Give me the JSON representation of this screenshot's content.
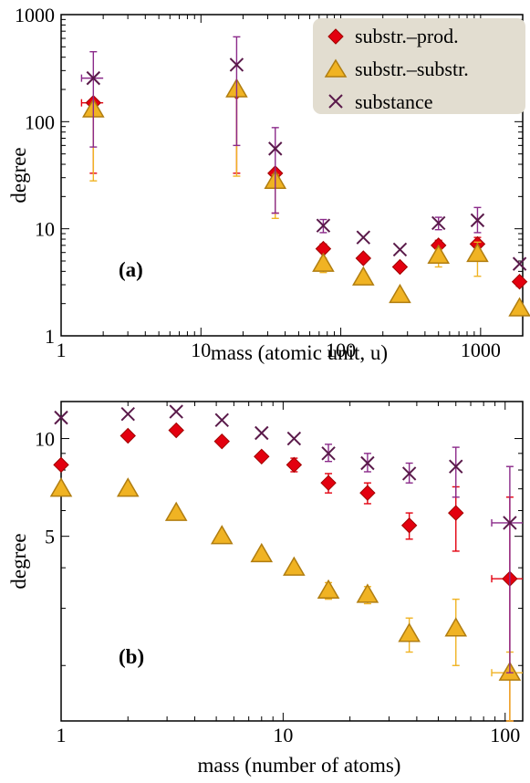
{
  "colors": {
    "substr_prod": "#e3000f",
    "substr_prod_edge": "#a00000",
    "substr_substr": "#f0b323",
    "substr_substr_edge": "#b07d10",
    "substance": "#5a1a4a",
    "substance_err": "#8b2a8a",
    "legend_bg": "#e2ddd0"
  },
  "legend": {
    "placement": "top-right",
    "entries": [
      {
        "label": "substr.–prod.",
        "marker": "diamond",
        "series": "substr_prod"
      },
      {
        "label": "substr.–substr.",
        "marker": "triangle",
        "series": "substr_substr"
      },
      {
        "label": "substance",
        "marker": "x",
        "series": "substance"
      }
    ]
  },
  "chart_data": [
    {
      "type": "scatter",
      "panel_label": "(a)",
      "xlabel": "mass (atomic unit, u)",
      "ylabel": "degree",
      "xscale": "log",
      "yscale": "log",
      "xlim": [
        1,
        2000
      ],
      "ylim": [
        1,
        1000
      ],
      "xticks": [
        {
          "v": 1,
          "label": "1"
        },
        {
          "v": 10,
          "label": "10"
        },
        {
          "v": 100,
          "label": "100"
        },
        {
          "v": 1000,
          "label": "1000"
        }
      ],
      "yticks": [
        {
          "v": 1,
          "label": "1"
        },
        {
          "v": 10,
          "label": "10"
        },
        {
          "v": 100,
          "label": "100"
        },
        {
          "v": 1000,
          "label": "1000"
        }
      ],
      "series": [
        {
          "name": "substr.–prod.",
          "key": "substr_prod",
          "points": [
            {
              "x": 1.7,
              "y": 150,
              "ylo": 33,
              "yhi": 155,
              "xlo": 1.4,
              "xhi": 2.0
            },
            {
              "x": 18,
              "y": 190,
              "ylo": 33,
              "yhi": 195
            },
            {
              "x": 34,
              "y": 33,
              "ylo": 14,
              "yhi": 35
            },
            {
              "x": 75,
              "y": 6.5,
              "ylo": 6.0,
              "yhi": 7.2
            },
            {
              "x": 145,
              "y": 5.3
            },
            {
              "x": 265,
              "y": 4.4
            },
            {
              "x": 500,
              "y": 7.0,
              "ylo": 6.4,
              "yhi": 7.8
            },
            {
              "x": 950,
              "y": 7.2,
              "ylo": 6.3,
              "yhi": 8.3
            },
            {
              "x": 1900,
              "y": 3.2,
              "ylo": 2.9,
              "yhi": 3.4
            }
          ]
        },
        {
          "name": "substr.–substr.",
          "key": "substr_substr",
          "points": [
            {
              "x": 1.7,
              "y": 130,
              "ylo": 28,
              "yhi": 140
            },
            {
              "x": 18,
              "y": 200,
              "ylo": 31,
              "yhi": 210
            },
            {
              "x": 34,
              "y": 28,
              "ylo": 12.5,
              "yhi": 32
            },
            {
              "x": 75,
              "y": 4.7,
              "ylo": 3.9,
              "yhi": 5.3
            },
            {
              "x": 145,
              "y": 3.5
            },
            {
              "x": 265,
              "y": 2.4
            },
            {
              "x": 500,
              "y": 5.6,
              "ylo": 4.4,
              "yhi": 6.4
            },
            {
              "x": 950,
              "y": 5.8,
              "ylo": 3.6,
              "yhi": 7.5
            },
            {
              "x": 1900,
              "y": 1.8
            }
          ]
        },
        {
          "name": "substance",
          "key": "substance",
          "points": [
            {
              "x": 1.7,
              "y": 255,
              "ylo": 58,
              "yhi": 450,
              "xlo": 1.4,
              "xhi": 2.0
            },
            {
              "x": 18,
              "y": 340,
              "ylo": 60,
              "yhi": 620
            },
            {
              "x": 34,
              "y": 56,
              "ylo": 14,
              "yhi": 88
            },
            {
              "x": 75,
              "y": 10.7,
              "ylo": 9.2,
              "yhi": 12.2
            },
            {
              "x": 145,
              "y": 8.3
            },
            {
              "x": 265,
              "y": 6.4
            },
            {
              "x": 500,
              "y": 11.3,
              "ylo": 9.8,
              "yhi": 12.8
            },
            {
              "x": 950,
              "y": 12.0,
              "ylo": 9.2,
              "yhi": 15.8
            },
            {
              "x": 1900,
              "y": 4.7
            }
          ]
        }
      ]
    },
    {
      "type": "scatter",
      "panel_label": "(b)",
      "xlabel": "mass (number of atoms)",
      "ylabel": "degree",
      "xscale": "log",
      "yscale": "log",
      "xlim": [
        1,
        120
      ],
      "ylim": [
        1.35,
        13
      ],
      "xticks": [
        {
          "v": 1,
          "label": "1"
        },
        {
          "v": 10,
          "label": "10"
        },
        {
          "v": 100,
          "label": "100"
        }
      ],
      "yticks": [
        {
          "v": 5,
          "label": "5"
        },
        {
          "v": 10,
          "label": "10"
        }
      ],
      "series": [
        {
          "name": "substr.–prod.",
          "key": "substr_prod",
          "points": [
            {
              "x": 1.0,
              "y": 8.3
            },
            {
              "x": 2.0,
              "y": 10.2
            },
            {
              "x": 3.3,
              "y": 10.6
            },
            {
              "x": 5.3,
              "y": 9.8
            },
            {
              "x": 8.0,
              "y": 8.8
            },
            {
              "x": 11.2,
              "y": 8.3,
              "ylo": 7.9,
              "yhi": 8.7
            },
            {
              "x": 16,
              "y": 7.3,
              "ylo": 6.8,
              "yhi": 7.8
            },
            {
              "x": 24,
              "y": 6.8,
              "ylo": 6.3,
              "yhi": 7.3
            },
            {
              "x": 37,
              "y": 5.4,
              "ylo": 4.9,
              "yhi": 5.9
            },
            {
              "x": 60,
              "y": 5.9,
              "ylo": 4.5,
              "yhi": 7.1
            },
            {
              "x": 105,
              "y": 3.7,
              "ylo": 1.35,
              "yhi": 6.6,
              "xlo": 87,
              "xhi": 120
            }
          ]
        },
        {
          "name": "substr.–substr.",
          "key": "substr_substr",
          "points": [
            {
              "x": 1.0,
              "y": 7.0
            },
            {
              "x": 2.0,
              "y": 7.0
            },
            {
              "x": 3.3,
              "y": 5.9
            },
            {
              "x": 5.3,
              "y": 5.0
            },
            {
              "x": 8.0,
              "y": 4.4,
              "ylo": 4.3,
              "yhi": 4.5
            },
            {
              "x": 11.2,
              "y": 4.0,
              "ylo": 3.9,
              "yhi": 4.1
            },
            {
              "x": 16,
              "y": 3.4,
              "ylo": 3.2,
              "yhi": 3.6
            },
            {
              "x": 24,
              "y": 3.3,
              "ylo": 3.1,
              "yhi": 3.5
            },
            {
              "x": 37,
              "y": 2.5,
              "ylo": 2.2,
              "yhi": 2.8
            },
            {
              "x": 60,
              "y": 2.6,
              "ylo": 2.0,
              "yhi": 3.2
            },
            {
              "x": 105,
              "y": 1.9,
              "ylo": 1.35,
              "yhi": 2.2,
              "xlo": 87,
              "xhi": 120
            }
          ]
        },
        {
          "name": "substance",
          "key": "substance",
          "points": [
            {
              "x": 1.0,
              "y": 11.6
            },
            {
              "x": 2.0,
              "y": 11.9
            },
            {
              "x": 3.3,
              "y": 12.1
            },
            {
              "x": 5.3,
              "y": 11.4
            },
            {
              "x": 8.0,
              "y": 10.4
            },
            {
              "x": 11.2,
              "y": 10.0
            },
            {
              "x": 16,
              "y": 9.0,
              "ylo": 8.5,
              "yhi": 9.6
            },
            {
              "x": 24,
              "y": 8.4,
              "ylo": 7.9,
              "yhi": 9.0
            },
            {
              "x": 37,
              "y": 7.8,
              "ylo": 7.3,
              "yhi": 8.4
            },
            {
              "x": 60,
              "y": 8.2,
              "ylo": 6.6,
              "yhi": 9.4
            },
            {
              "x": 105,
              "y": 5.5,
              "ylo": 1.9,
              "yhi": 8.2,
              "xlo": 87,
              "xhi": 120
            }
          ]
        }
      ]
    }
  ]
}
